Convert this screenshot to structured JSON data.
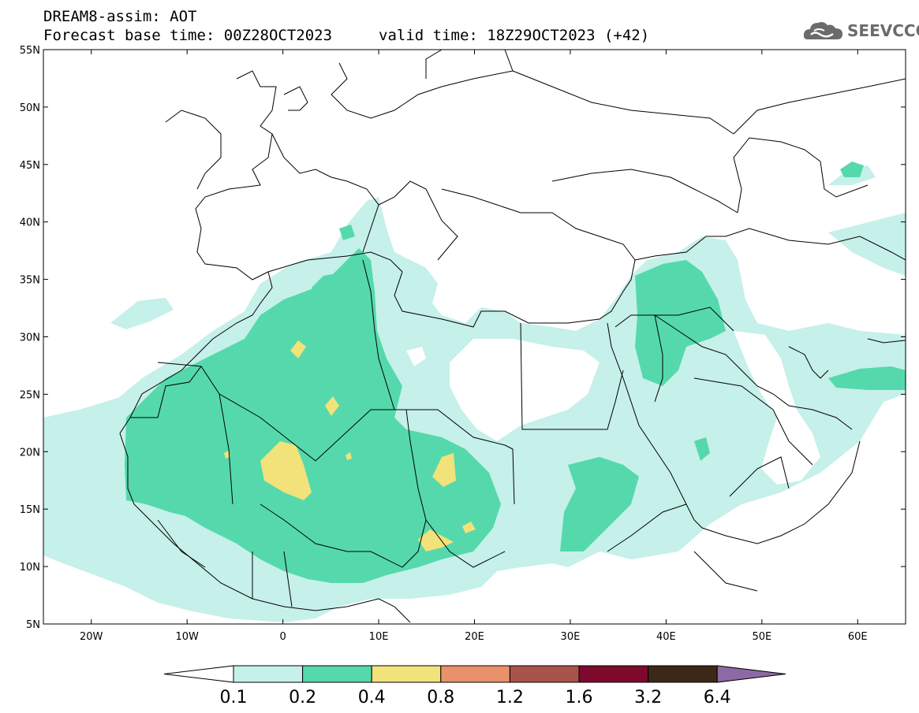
{
  "header": {
    "title": "DREAM8-assim: AOT",
    "base_time": "Forecast base time: 00Z28OCT2023",
    "valid_time": "valid time: 18Z29OCT2023 (+42)"
  },
  "logo": {
    "text": "SEEVCCC",
    "icon": "cloud-icon",
    "color": "#6b6b6b"
  },
  "map": {
    "lat_labels": [
      {
        "lat": 55,
        "label": "55N"
      },
      {
        "lat": 50,
        "label": "50N"
      },
      {
        "lat": 45,
        "label": "45N"
      },
      {
        "lat": 40,
        "label": "40N"
      },
      {
        "lat": 35,
        "label": "35N"
      },
      {
        "lat": 30,
        "label": "30N"
      },
      {
        "lat": 25,
        "label": "25N"
      },
      {
        "lat": 20,
        "label": "20N"
      },
      {
        "lat": 15,
        "label": "15N"
      },
      {
        "lat": 10,
        "label": "10N"
      },
      {
        "lat": 5,
        "label": "5N"
      }
    ],
    "lon_labels": [
      {
        "lon": -20,
        "label": "20W"
      },
      {
        "lon": -10,
        "label": "10W"
      },
      {
        "lon": 0,
        "label": "0"
      },
      {
        "lon": 10,
        "label": "10E"
      },
      {
        "lon": 20,
        "label": "20E"
      },
      {
        "lon": 30,
        "label": "30E"
      },
      {
        "lon": 40,
        "label": "40E"
      },
      {
        "lon": 50,
        "label": "50E"
      },
      {
        "lon": 60,
        "label": "60E"
      }
    ],
    "lon_range": [
      -25,
      65
    ],
    "lat_range": [
      5,
      55
    ]
  },
  "colorbar": {
    "labels": [
      "0.1",
      "0.2",
      "0.4",
      "0.8",
      "1.2",
      "1.6",
      "3.2",
      "6.4"
    ],
    "colors": [
      "#c6f0ea",
      "#55d9ac",
      "#f2e27a",
      "#e8916a",
      "#a9544a",
      "#7d0a2d",
      "#3d2718",
      "#8e6aa4"
    ]
  }
}
